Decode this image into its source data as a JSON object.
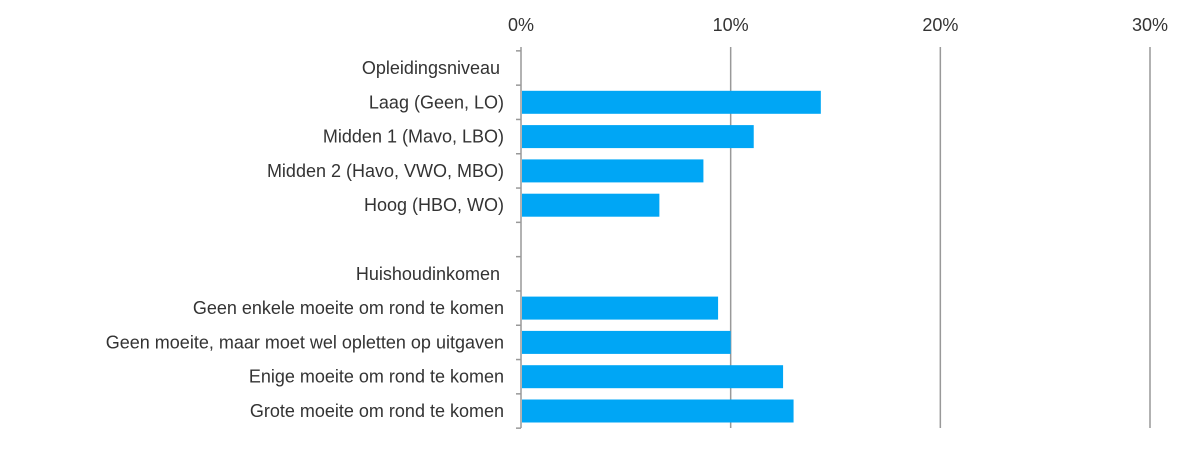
{
  "chart_data": {
    "type": "bar",
    "orientation": "horizontal",
    "xlim": [
      0,
      30
    ],
    "xticks": [
      0,
      10,
      20,
      30
    ],
    "tick_labels": [
      "0%",
      "10%",
      "20%",
      "30%"
    ],
    "grid": true,
    "tick_position": "top",
    "bar_color": "#00A6F5",
    "categories": [
      {
        "label": "Opleidingsniveau",
        "value": null,
        "header": true
      },
      {
        "label": "Laag (Geen, LO)",
        "value": 14.3
      },
      {
        "label": "Midden 1 (Mavo, LBO)",
        "value": 11.1
      },
      {
        "label": "Midden 2 (Havo, VWO, MBO)",
        "value": 8.7
      },
      {
        "label": "Hoog (HBO, WO)",
        "value": 6.6
      },
      {
        "label": "",
        "value": null,
        "spacer": true
      },
      {
        "label": "Huishoudinkomen",
        "value": null,
        "header": true
      },
      {
        "label": "Geen enkele moeite om rond te komen",
        "value": 9.4
      },
      {
        "label": "Geen moeite, maar moet wel opletten op uitgaven",
        "value": 10.0
      },
      {
        "label": "Enige moeite om rond te komen",
        "value": 12.5
      },
      {
        "label": "Grote moeite om rond te komen",
        "value": 13.0
      }
    ]
  }
}
